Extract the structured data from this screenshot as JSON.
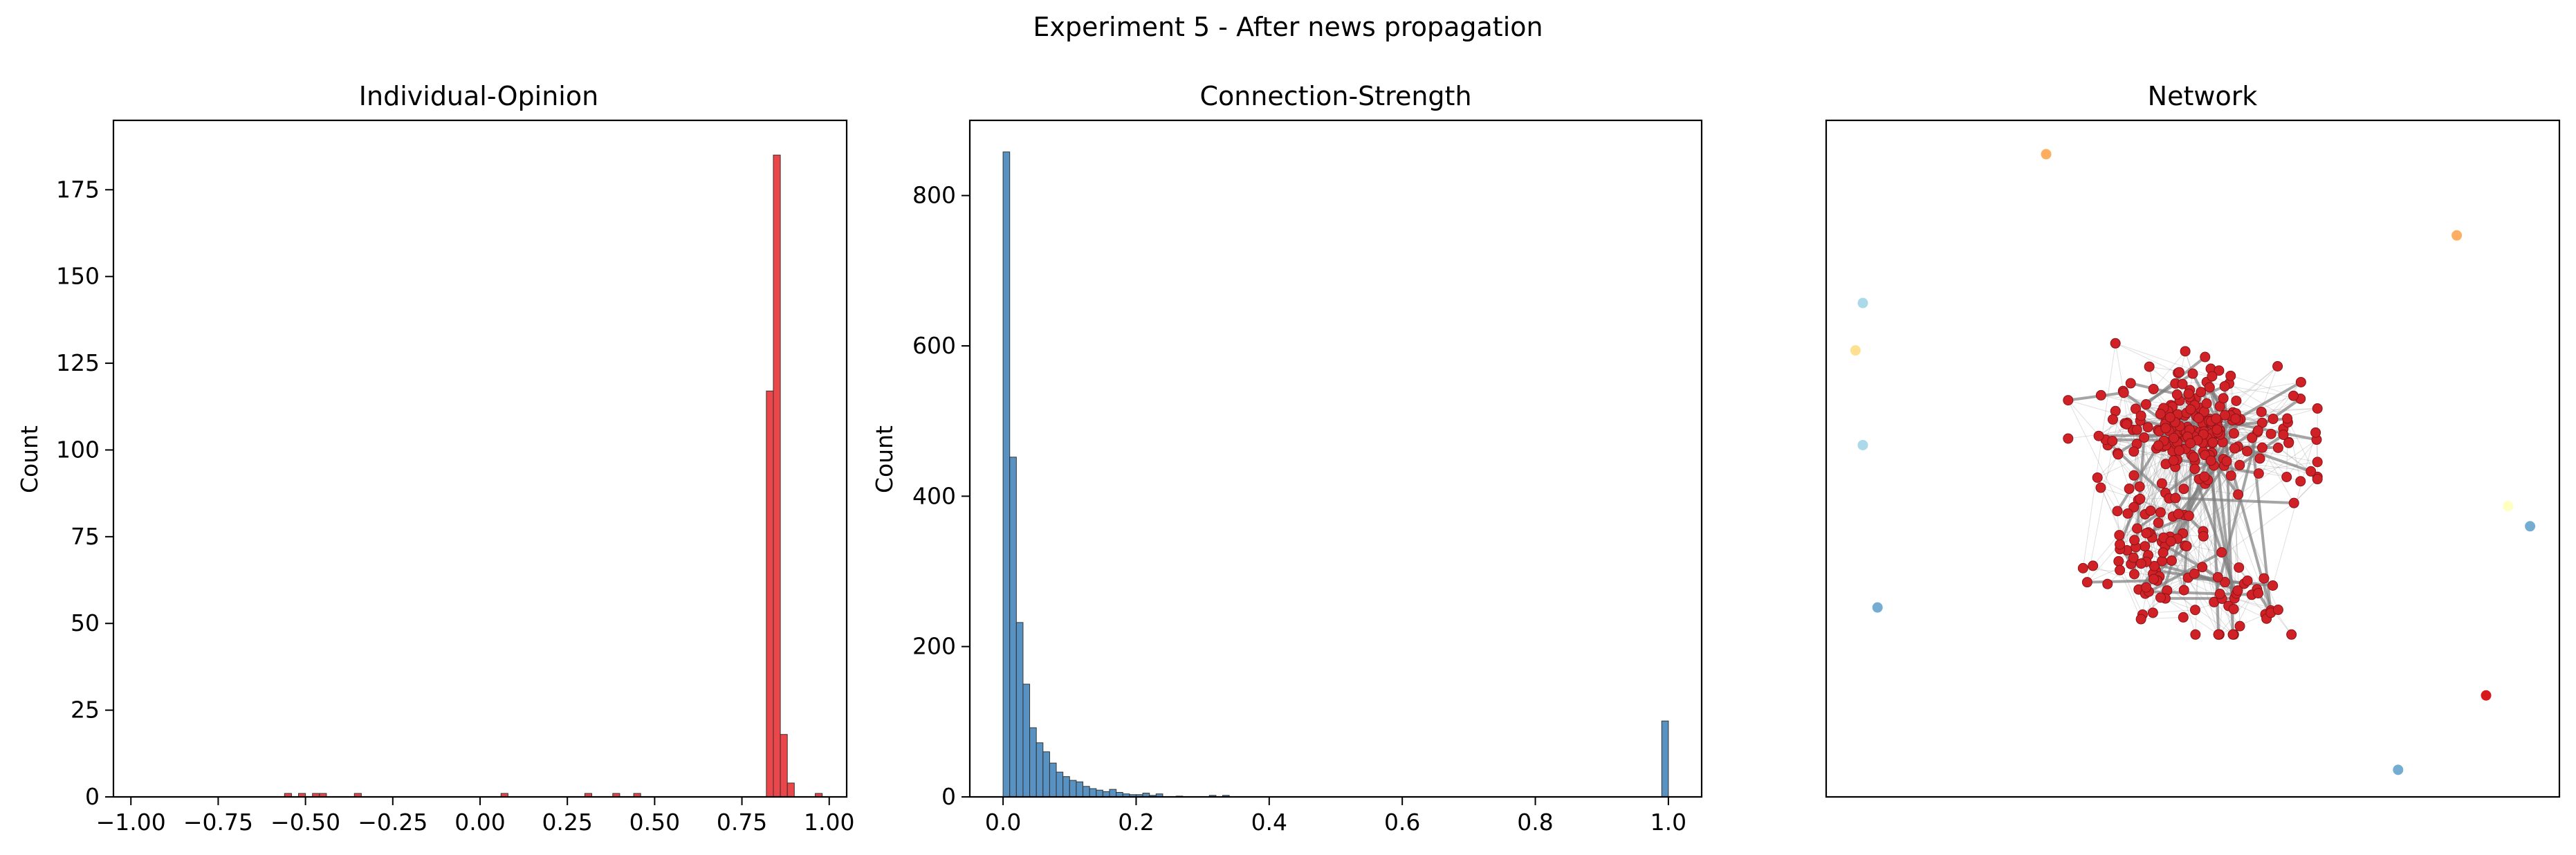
{
  "figure": {
    "suptitle": "Experiment 5 - After news propagation"
  },
  "chart_data": [
    {
      "type": "bar",
      "subtype": "histogram",
      "title": "Individual-Opinion",
      "xlabel": "",
      "ylabel": "Count",
      "xlim": [
        -1.05,
        1.05
      ],
      "ylim": [
        0,
        195
      ],
      "xticks": [
        -1.0,
        -0.75,
        -0.5,
        -0.25,
        0.0,
        0.25,
        0.5,
        0.75,
        1.0
      ],
      "xtick_labels": [
        "−1.00",
        "−0.75",
        "−0.50",
        "−0.25",
        "0.00",
        "0.25",
        "0.50",
        "0.75",
        "1.00"
      ],
      "yticks": [
        0,
        25,
        50,
        75,
        100,
        125,
        150,
        175
      ],
      "ytick_labels": [
        "0",
        "25",
        "50",
        "75",
        "100",
        "125",
        "150",
        "175"
      ],
      "bin_width": 0.02,
      "bins": [
        {
          "x": -0.56,
          "count": 1
        },
        {
          "x": -0.52,
          "count": 1
        },
        {
          "x": -0.48,
          "count": 1
        },
        {
          "x": -0.46,
          "count": 1
        },
        {
          "x": -0.36,
          "count": 1
        },
        {
          "x": 0.06,
          "count": 1
        },
        {
          "x": 0.3,
          "count": 1
        },
        {
          "x": 0.38,
          "count": 1
        },
        {
          "x": 0.44,
          "count": 1
        },
        {
          "x": 0.82,
          "count": 117
        },
        {
          "x": 0.84,
          "count": 185
        },
        {
          "x": 0.86,
          "count": 18
        },
        {
          "x": 0.88,
          "count": 4
        },
        {
          "x": 0.96,
          "count": 1
        }
      ],
      "color": "#e8262a",
      "grid": false
    },
    {
      "type": "bar",
      "subtype": "histogram",
      "title": "Connection-Strength",
      "xlabel": "",
      "ylabel": "Count",
      "xlim": [
        -0.05,
        1.05
      ],
      "ylim": [
        0,
        900
      ],
      "xticks": [
        0.0,
        0.2,
        0.4,
        0.6,
        0.8,
        1.0
      ],
      "xtick_labels": [
        "0.0",
        "0.2",
        "0.4",
        "0.6",
        "0.8",
        "1.0"
      ],
      "yticks": [
        0,
        200,
        400,
        600,
        800
      ],
      "ytick_labels": [
        "0",
        "200",
        "400",
        "600",
        "800"
      ],
      "bin_width": 0.01,
      "bins": [
        {
          "x": 0.0,
          "count": 858
        },
        {
          "x": 0.01,
          "count": 452
        },
        {
          "x": 0.02,
          "count": 232
        },
        {
          "x": 0.03,
          "count": 150
        },
        {
          "x": 0.04,
          "count": 92
        },
        {
          "x": 0.05,
          "count": 72
        },
        {
          "x": 0.06,
          "count": 60
        },
        {
          "x": 0.07,
          "count": 45
        },
        {
          "x": 0.08,
          "count": 33
        },
        {
          "x": 0.09,
          "count": 27
        },
        {
          "x": 0.1,
          "count": 22
        },
        {
          "x": 0.11,
          "count": 20
        },
        {
          "x": 0.12,
          "count": 14
        },
        {
          "x": 0.13,
          "count": 11
        },
        {
          "x": 0.14,
          "count": 9
        },
        {
          "x": 0.15,
          "count": 7
        },
        {
          "x": 0.16,
          "count": 10
        },
        {
          "x": 0.17,
          "count": 6
        },
        {
          "x": 0.18,
          "count": 4
        },
        {
          "x": 0.19,
          "count": 3
        },
        {
          "x": 0.2,
          "count": 3
        },
        {
          "x": 0.21,
          "count": 5
        },
        {
          "x": 0.22,
          "count": 2
        },
        {
          "x": 0.23,
          "count": 4
        },
        {
          "x": 0.26,
          "count": 1
        },
        {
          "x": 0.31,
          "count": 2
        },
        {
          "x": 0.33,
          "count": 2
        },
        {
          "x": 0.99,
          "count": 101
        }
      ],
      "color": "#3b7fb8",
      "grid": false
    },
    {
      "type": "scatter",
      "subtype": "network",
      "title": "Network",
      "axes_visible": false,
      "node_color": "#d02127",
      "edge_color": "#7f7f7f",
      "isolated_nodes": [
        {
          "x": 0.3,
          "y": 0.95,
          "color": "#fdae61"
        },
        {
          "x": 0.86,
          "y": 0.83,
          "color": "#fdae61"
        },
        {
          "x": 0.05,
          "y": 0.73,
          "color": "#abd9e9"
        },
        {
          "x": 0.04,
          "y": 0.66,
          "color": "#fee090"
        },
        {
          "x": 0.05,
          "y": 0.52,
          "color": "#abd9e9"
        },
        {
          "x": 0.93,
          "y": 0.43,
          "color": "#ffffbf"
        },
        {
          "x": 0.96,
          "y": 0.4,
          "color": "#74add1"
        },
        {
          "x": 0.07,
          "y": 0.28,
          "color": "#74add1"
        },
        {
          "x": 0.9,
          "y": 0.15,
          "color": "#d7191c"
        },
        {
          "x": 0.78,
          "y": 0.04,
          "color": "#74add1"
        }
      ],
      "cluster": {
        "cx": 0.5,
        "cy": 0.49,
        "rx": 0.17,
        "ry": 0.25,
        "node_count": 330,
        "edge_count": 700
      }
    }
  ]
}
